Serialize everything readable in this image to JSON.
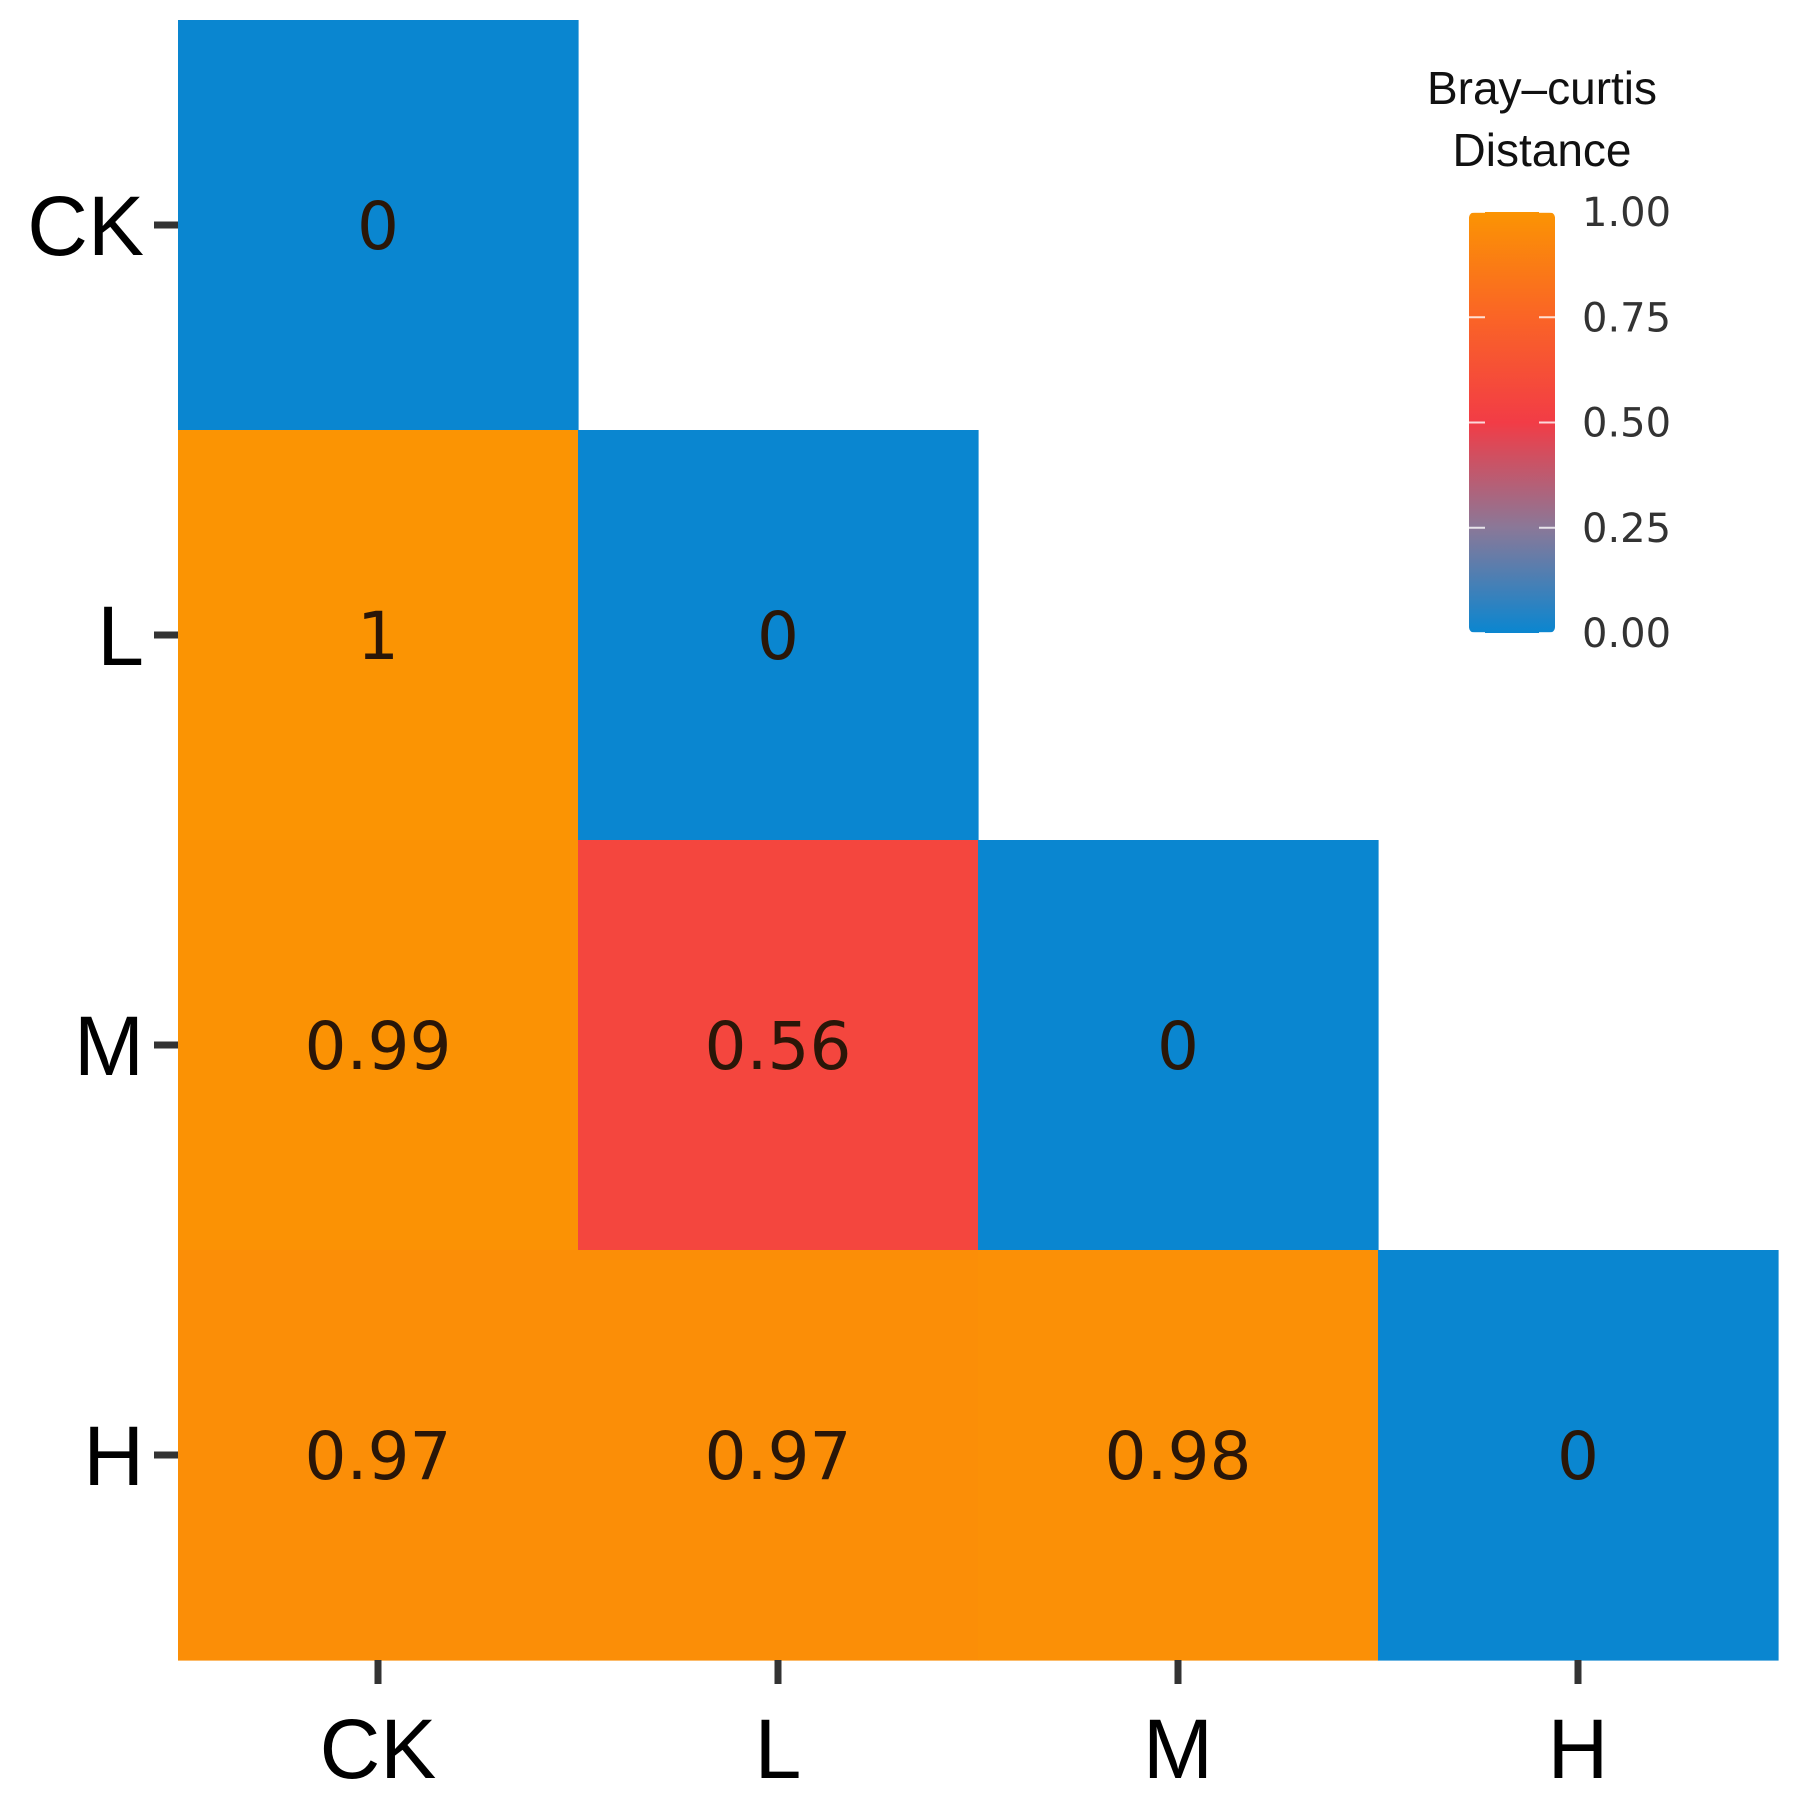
{
  "chart_data": {
    "type": "heatmap",
    "x_categories": [
      "CK",
      "L",
      "M",
      "H"
    ],
    "y_categories": [
      "CK",
      "L",
      "M",
      "H"
    ],
    "cells": [
      {
        "x": "CK",
        "y": "CK",
        "value": 0,
        "label": "0"
      },
      {
        "x": "CK",
        "y": "L",
        "value": 1,
        "label": "1"
      },
      {
        "x": "L",
        "y": "L",
        "value": 0,
        "label": "0"
      },
      {
        "x": "CK",
        "y": "M",
        "value": 0.99,
        "label": "0.99"
      },
      {
        "x": "L",
        "y": "M",
        "value": 0.56,
        "label": "0.56"
      },
      {
        "x": "M",
        "y": "M",
        "value": 0,
        "label": "0"
      },
      {
        "x": "CK",
        "y": "H",
        "value": 0.97,
        "label": "0.97"
      },
      {
        "x": "L",
        "y": "H",
        "value": 0.97,
        "label": "0.97"
      },
      {
        "x": "M",
        "y": "H",
        "value": 0.98,
        "label": "0.98"
      },
      {
        "x": "H",
        "y": "H",
        "value": 0,
        "label": "0"
      }
    ],
    "legend": {
      "title_lines": [
        "Bray–curtis",
        "Distance"
      ],
      "range": [
        0,
        1
      ],
      "ticks": [
        {
          "value": 1.0,
          "label": "1.00"
        },
        {
          "value": 0.75,
          "label": "0.75"
        },
        {
          "value": 0.5,
          "label": "0.50"
        },
        {
          "value": 0.25,
          "label": "0.25"
        },
        {
          "value": 0.0,
          "label": "0.00"
        }
      ],
      "placement": "top-right"
    },
    "color_scale": [
      {
        "value": 0.0,
        "color": "#0a86d0"
      },
      {
        "value": 0.25,
        "color": "#8a7898"
      },
      {
        "value": 0.5,
        "color": "#f23c46"
      },
      {
        "value": 0.75,
        "color": "#fa6426"
      },
      {
        "value": 1.0,
        "color": "#fb9403"
      }
    ]
  }
}
